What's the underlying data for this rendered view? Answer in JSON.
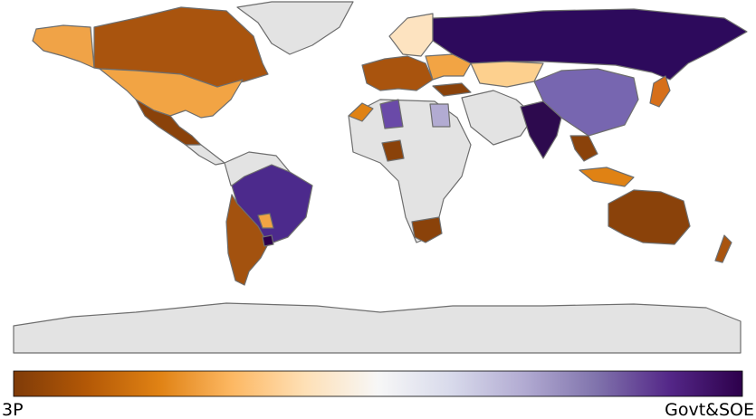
{
  "colorbar": {
    "min_label": "3P",
    "max_label": "Govt&SOE"
  }
}
